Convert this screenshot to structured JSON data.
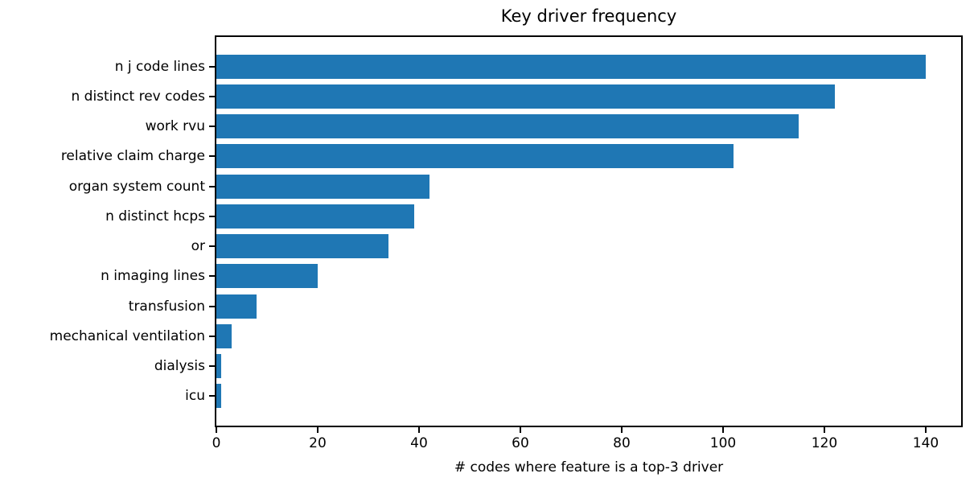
{
  "chart_data": {
    "type": "bar",
    "orientation": "horizontal",
    "title": "Key driver frequency",
    "xlabel": "# codes where feature is a top-3 driver",
    "ylabel": "",
    "categories": [
      "n j code lines",
      "n distinct rev codes",
      "work rvu",
      "relative claim charge",
      "organ system count",
      "n distinct hcps",
      "or",
      "n imaging lines",
      "transfusion",
      "mechanical ventilation",
      "dialysis",
      "icu"
    ],
    "values": [
      140,
      122,
      115,
      102,
      42,
      39,
      34,
      20,
      8,
      3,
      1,
      1
    ],
    "xticks": [
      0,
      20,
      40,
      60,
      80,
      100,
      120,
      140
    ],
    "xlim": [
      0,
      147
    ],
    "bar_color": "#1f77b4",
    "spine_color": "#000000",
    "grid": false,
    "legend": null
  }
}
